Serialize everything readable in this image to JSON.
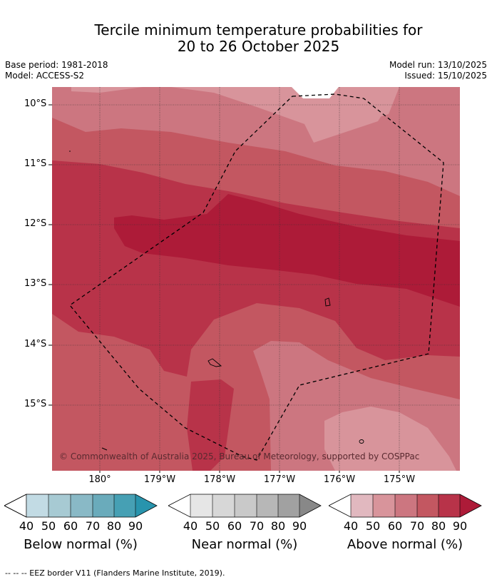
{
  "title_line1": "Tercile minimum temperature probabilities for",
  "title_line2": "20 to 26 October 2025",
  "base_period": "Base period: 1981-2018",
  "model": "Model: ACCESS-S2",
  "model_run": "Model run: 13/10/2025",
  "issued": "Issued: 15/10/2025",
  "lat_labels": [
    "10°S",
    "11°S",
    "12°S",
    "13°S",
    "14°S",
    "15°S"
  ],
  "lon_labels": [
    "180°",
    "179°W",
    "178°W",
    "177°W",
    "176°W",
    "175°W"
  ],
  "copyright": "© Commonwealth of Australia 2025, Bureau of Meteorology, supported by COSPPac",
  "legend": {
    "ticks": [
      "40",
      "50",
      "60",
      "70",
      "80",
      "90"
    ],
    "below_label": "Below normal (%)",
    "near_label": "Near normal (%)",
    "above_label": "Above normal (%)",
    "below_colors": [
      "#c2dbe4",
      "#a7cad3",
      "#89b9c6",
      "#6aabbb",
      "#46a0b4",
      "#2894ad"
    ],
    "near_colors": [
      "#e6e6e6",
      "#d7d7d7",
      "#c9c9c9",
      "#b7b7b7",
      "#a1a1a1",
      "#888888"
    ],
    "above_colors": [
      "#e1b8bf",
      "#d8949b",
      "#cc7680",
      "#c35761",
      "#b83349",
      "#ad1b38"
    ]
  },
  "footnote": "--  --  -- EEZ border V11 (Flanders Marine Institute, 2019)."
}
